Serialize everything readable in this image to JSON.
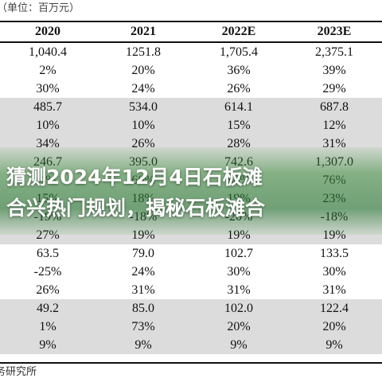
{
  "header": {
    "unit_label": "（单位：百万元）"
  },
  "table": {
    "columns": [
      "2020",
      "2021",
      "2022E",
      "2023E"
    ],
    "rows": [
      [
        "1,040.4",
        "1251.8",
        "1,705.4",
        "2,375.1"
      ],
      [
        "2%",
        "20%",
        "36%",
        "39%"
      ],
      [
        "30%",
        "24%",
        "26%",
        "29%"
      ],
      [
        "485.7",
        "534.0",
        "614.1",
        "687.8"
      ],
      [
        "10%",
        "10%",
        "15%",
        "12%"
      ],
      [
        "34%",
        "26%",
        "28%",
        "31%"
      ],
      [
        "246.7",
        "395.0",
        "742.6",
        "1,307.0"
      ],
      [
        "4%",
        "60%",
        "88%",
        "76%"
      ],
      [
        "15%",
        "18%",
        "19%",
        "23%"
      ],
      [
        "-19%",
        "-18%",
        "-20%",
        "-18%"
      ],
      [
        "27%",
        "19%",
        "19%",
        "19%"
      ],
      [
        "63.5",
        "79.0",
        "102.7",
        "133.5"
      ],
      [
        "-25%",
        "24%",
        "30%",
        "30%"
      ],
      [
        "26%",
        "31%",
        "31%",
        "31%"
      ],
      [
        "49.2",
        "85.0",
        "102.0",
        "122.4"
      ],
      [
        "1%",
        "73%",
        "20%",
        "20%"
      ],
      [
        "9%",
        "9%",
        "9%",
        "9%"
      ]
    ]
  },
  "source": {
    "label": "务研究所"
  },
  "overlay": {
    "line1": "猜测2024年12月4日石板滩",
    "line2": "合兴热门规划，揭秘石板滩合"
  },
  "colors": {
    "shade": "#dcdcdc",
    "overlay_green": "#3c8c3c"
  }
}
